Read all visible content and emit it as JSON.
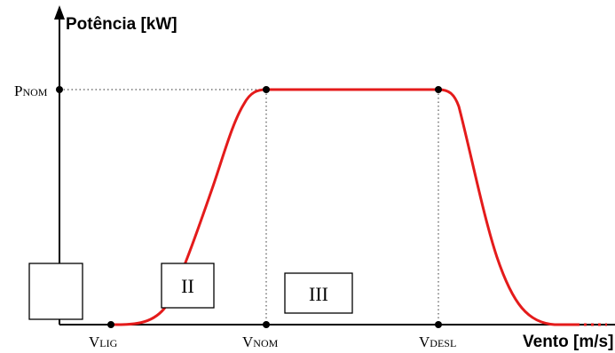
{
  "diagram": {
    "y_axis_title": "Potência [kW]",
    "x_axis_title": "Vento [m/s]",
    "y_marker": {
      "main": "P",
      "sub": "NOM"
    },
    "x_markers": [
      {
        "id": "lig",
        "main": "V",
        "sub": "LIG"
      },
      {
        "id": "nom",
        "main": "V",
        "sub": "NOM"
      },
      {
        "id": "desl",
        "main": "V",
        "sub": "DESL"
      }
    ],
    "regions": [
      {
        "id": "region-1",
        "label": ""
      },
      {
        "id": "region-2",
        "label": "II"
      },
      {
        "id": "region-3",
        "label": "III"
      }
    ],
    "colors": {
      "curve": "#e41b1b",
      "axis": "#000000",
      "guide": "#555555",
      "box_border": "#000000"
    }
  }
}
